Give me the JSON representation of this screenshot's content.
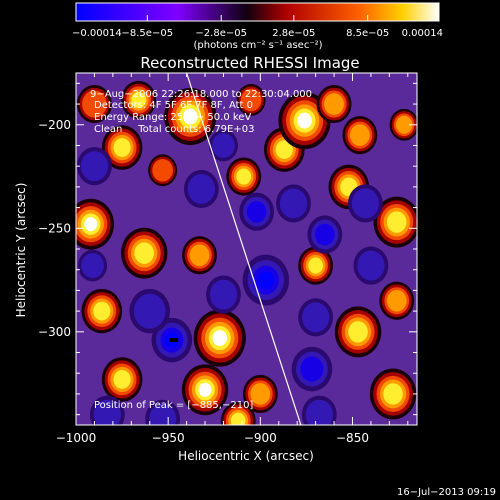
{
  "chart_data": {
    "type": "heatmap",
    "title": "Reconstructed RHESSI Image",
    "xlabel": "Heliocentric X (arcsec)",
    "ylabel": "Heliocentric Y (arcsec)",
    "xlim": [
      -1000,
      -815
    ],
    "ylim": [
      -345,
      -175
    ],
    "x_ticks": [
      -1000,
      -950,
      -900,
      -850
    ],
    "x_tick_labels": [
      "−1000",
      "−950",
      "−900",
      "−850"
    ],
    "y_ticks": [
      -200,
      -250,
      -300
    ],
    "y_tick_labels": [
      "−200",
      "−250",
      "−300"
    ],
    "colorbar": {
      "min": -0.00014,
      "max": 0.00014,
      "ticks": [
        -0.00014,
        -8.5e-05,
        -2.8e-05,
        2.8e-05,
        8.5e-05,
        0.00014
      ],
      "tick_labels": [
        "−0.00014",
        "−8.5e−05",
        "−2.8e−05",
        "2.8e−05",
        "8.5e−05",
        "0.00014"
      ],
      "unit_label": "(photons cm⁻² s⁻¹ asec⁻²)",
      "colors": [
        "#0000ff",
        "#7f00ff",
        "#100010",
        "#b00000",
        "#ff6000",
        "#ffffff"
      ]
    },
    "annotations": {
      "time_range": "9−Aug−2006 22:26:18.000 to 22:30:04.000",
      "detectors": "Detectors: 4F 5F 6F 7F 8F, Att 0",
      "energy": "Energy Range: 25.0 − 50.0 keV",
      "clean": "Clean     Total counts: 6.79E+03",
      "peak": "Position of Peak = [−885,−210]"
    },
    "limb_line": [
      [
        -940,
        -175
      ],
      [
        -878,
        -345
      ]
    ],
    "peak_position": [
      -885,
      -210
    ],
    "marker_position": [
      -947,
      -304
    ],
    "blobs": [
      {
        "x": -966,
        "y": -188,
        "a": 0.9,
        "s": 6
      },
      {
        "x": -975,
        "y": -211,
        "a": 0.75,
        "s": 7
      },
      {
        "x": -938,
        "y": -196,
        "a": 0.95,
        "s": 9
      },
      {
        "x": -909,
        "y": -225,
        "a": 0.8,
        "s": 6
      },
      {
        "x": -887,
        "y": -212,
        "a": 0.8,
        "s": 7
      },
      {
        "x": -876,
        "y": -198,
        "a": 1.0,
        "s": 9
      },
      {
        "x": -852,
        "y": -230,
        "a": 0.75,
        "s": 7
      },
      {
        "x": -846,
        "y": -205,
        "a": 0.6,
        "s": 6
      },
      {
        "x": -826,
        "y": -247,
        "a": 0.9,
        "s": 8
      },
      {
        "x": -992,
        "y": -248,
        "a": 0.95,
        "s": 8
      },
      {
        "x": -963,
        "y": -262,
        "a": 0.85,
        "s": 8
      },
      {
        "x": -933,
        "y": -263,
        "a": 0.7,
        "s": 6
      },
      {
        "x": -922,
        "y": -303,
        "a": 0.95,
        "s": 9
      },
      {
        "x": -930,
        "y": -328,
        "a": 1.0,
        "s": 8
      },
      {
        "x": -986,
        "y": -290,
        "a": 0.8,
        "s": 7
      },
      {
        "x": -975,
        "y": -323,
        "a": 0.75,
        "s": 7
      },
      {
        "x": -870,
        "y": -268,
        "a": 0.75,
        "s": 6
      },
      {
        "x": -900,
        "y": -330,
        "a": 0.7,
        "s": 6
      },
      {
        "x": -847,
        "y": -300,
        "a": 0.85,
        "s": 8
      },
      {
        "x": -828,
        "y": -330,
        "a": 0.9,
        "s": 8
      },
      {
        "x": -826,
        "y": -285,
        "a": 0.7,
        "s": 6
      },
      {
        "x": -912,
        "y": -343,
        "a": 0.9,
        "s": 6
      },
      {
        "x": -860,
        "y": -190,
        "a": 0.6,
        "s": 6
      },
      {
        "x": -905,
        "y": -188,
        "a": 0.55,
        "s": 5
      },
      {
        "x": -990,
        "y": -190,
        "a": 0.5,
        "s": 6
      },
      {
        "x": -822,
        "y": -200,
        "a": 0.6,
        "s": 5
      },
      {
        "x": -953,
        "y": -222,
        "a": 0.55,
        "s": 5
      },
      {
        "x": -948,
        "y": -304,
        "a": -1.0,
        "s": 7
      },
      {
        "x": -897,
        "y": -275,
        "a": -0.95,
        "s": 8
      },
      {
        "x": -902,
        "y": -242,
        "a": -0.7,
        "s": 6
      },
      {
        "x": -882,
        "y": -238,
        "a": -0.6,
        "s": 6
      },
      {
        "x": -865,
        "y": -253,
        "a": -0.65,
        "s": 6
      },
      {
        "x": -932,
        "y": -231,
        "a": -0.55,
        "s": 6
      },
      {
        "x": -990,
        "y": -220,
        "a": -0.6,
        "s": 6
      },
      {
        "x": -960,
        "y": -290,
        "a": -0.6,
        "s": 7
      },
      {
        "x": -953,
        "y": -342,
        "a": -0.55,
        "s": 6
      },
      {
        "x": -872,
        "y": -318,
        "a": -0.65,
        "s": 7
      },
      {
        "x": -870,
        "y": -293,
        "a": -0.5,
        "s": 6
      },
      {
        "x": -840,
        "y": -268,
        "a": -0.5,
        "s": 6
      },
      {
        "x": -843,
        "y": -238,
        "a": -0.5,
        "s": 6
      },
      {
        "x": -920,
        "y": -282,
        "a": -0.45,
        "s": 6
      },
      {
        "x": -991,
        "y": -268,
        "a": -0.45,
        "s": 5
      },
      {
        "x": -983,
        "y": -340,
        "a": -0.55,
        "s": 6
      },
      {
        "x": -920,
        "y": -210,
        "a": -0.45,
        "s": 5
      },
      {
        "x": -868,
        "y": -340,
        "a": -0.5,
        "s": 6
      }
    ]
  },
  "footer": {
    "timestamp": "16−Jul−2013 09:19"
  }
}
